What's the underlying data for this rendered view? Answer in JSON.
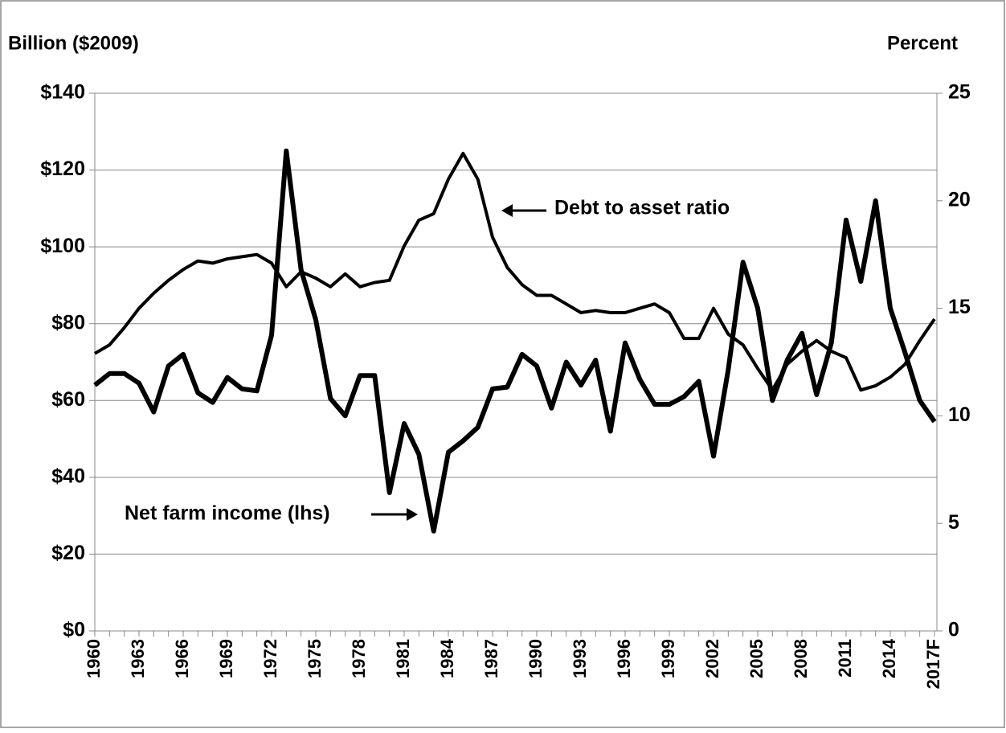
{
  "chart_data": {
    "type": "line",
    "y_label": "Billion ($2009)",
    "y2_label": "Percent",
    "categories": [
      "1960",
      null,
      null,
      "1963",
      null,
      null,
      "1966",
      null,
      null,
      "1969",
      null,
      null,
      "1972",
      null,
      null,
      "1975",
      null,
      null,
      "1978",
      null,
      null,
      "1981",
      null,
      null,
      "1984",
      null,
      null,
      "1987",
      null,
      null,
      "1990",
      null,
      null,
      "1993",
      null,
      null,
      "1996",
      null,
      null,
      "1999",
      null,
      null,
      "2002",
      null,
      null,
      "2005",
      null,
      null,
      "2008",
      null,
      null,
      "2011",
      null,
      null,
      "2014",
      null,
      null,
      "2017F"
    ],
    "series": [
      {
        "name": "Net farm income (lhs)",
        "color": "#000000",
        "axis": "y",
        "values": [
          64,
          67,
          67,
          64.5,
          57,
          69,
          72,
          62,
          59.5,
          66,
          63,
          62.5,
          77,
          125,
          94,
          81,
          60.5,
          56,
          66.5,
          66.5,
          36,
          54,
          46,
          26,
          46.5,
          49.5,
          53,
          63,
          63.5,
          72,
          69,
          58,
          70,
          64,
          70.5,
          52,
          75,
          65.5,
          59,
          59,
          61,
          65,
          45.5,
          68,
          96,
          84,
          60,
          70.5,
          77.5,
          61.5,
          75,
          107,
          91,
          112,
          84,
          72.5,
          60,
          54.5
        ]
      },
      {
        "name": "Debt to asset ratio",
        "color": "#000000",
        "axis": "y2",
        "values": [
          12.9,
          13.3,
          14.1,
          15.0,
          15.7,
          16.3,
          16.8,
          17.2,
          17.1,
          17.3,
          17.4,
          17.5,
          17.1,
          16.0,
          16.7,
          16.4,
          16.0,
          16.6,
          16.0,
          16.2,
          16.3,
          17.9,
          19.1,
          19.4,
          21.0,
          22.2,
          21.0,
          18.3,
          16.9,
          16.1,
          15.6,
          15.6,
          15.2,
          14.8,
          14.9,
          14.8,
          14.8,
          15.0,
          15.2,
          14.8,
          13.6,
          13.6,
          15.0,
          13.8,
          13.3,
          12.2,
          11.2,
          12.4,
          13.0,
          13.5,
          13.0,
          12.7,
          11.2,
          11.4,
          11.8,
          12.4,
          13.5,
          14.5
        ]
      }
    ],
    "ylim": [
      0,
      140
    ],
    "yticks": [
      {
        "value": 0,
        "label": "$0"
      },
      {
        "value": 20,
        "label": "$20"
      },
      {
        "value": 40,
        "label": "$40"
      },
      {
        "value": 60,
        "label": "$60"
      },
      {
        "value": 80,
        "label": "$80"
      },
      {
        "value": 100,
        "label": "$100"
      },
      {
        "value": 120,
        "label": "$120"
      },
      {
        "value": 140,
        "label": "$140"
      }
    ],
    "y2lim": [
      0,
      25
    ],
    "y2ticks": [
      0,
      5,
      10,
      15,
      20,
      25
    ],
    "grid": true
  }
}
